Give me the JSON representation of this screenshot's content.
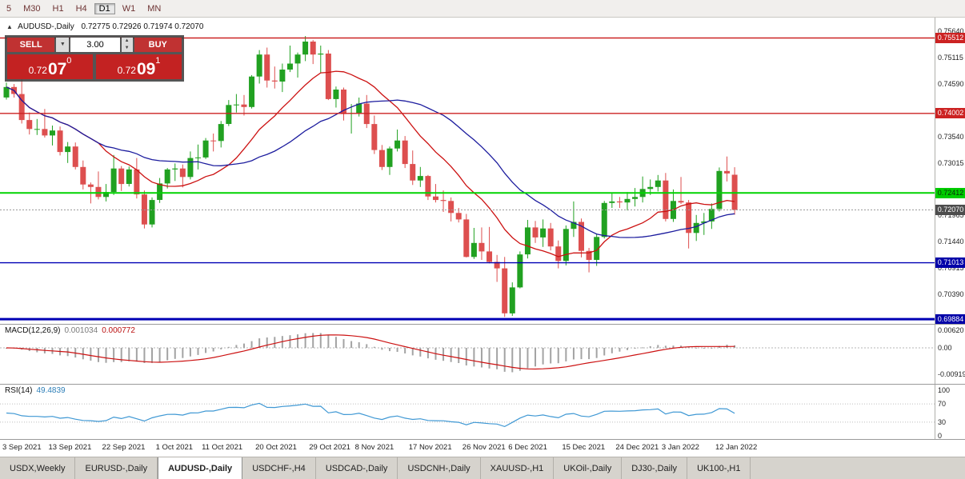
{
  "toolbar": {
    "timeframes": [
      {
        "label": "5",
        "active": false
      },
      {
        "label": "M30",
        "active": false
      },
      {
        "label": "H1",
        "active": false
      },
      {
        "label": "H4",
        "active": false
      },
      {
        "label": "D1",
        "active": true
      },
      {
        "label": "W1",
        "active": false
      },
      {
        "label": "MN",
        "active": false
      }
    ]
  },
  "symbol_header": {
    "arrow": "▲",
    "symbol": "AUDUSD-,Daily",
    "ohlc": "0.72775 0.72926 0.71974 0.72070"
  },
  "trade_panel": {
    "sell_label": "SELL",
    "buy_label": "BUY",
    "volume": "3.00",
    "sell_price": {
      "small": "0.72",
      "big": "07",
      "sup": "0"
    },
    "buy_price": {
      "small": "0.72",
      "big": "09",
      "sup": "1"
    }
  },
  "chart_data": {
    "type": "candlestick",
    "title": "AUDUSD-,Daily",
    "ohlc_header": {
      "open": "0.72775",
      "high": "0.72926",
      "low": "0.71974",
      "close": "0.72070"
    },
    "style": {
      "up": "#21a121",
      "down": "#dd4f4f",
      "bg": "#ffffff"
    },
    "price_axis": {
      "max": 0.7592,
      "min": 0.6979,
      "ticks": [
        0.7564,
        0.75115,
        0.7459,
        0.74065,
        0.7354,
        0.73015,
        0.7249,
        0.71965,
        0.7144,
        0.70915,
        0.7039,
        0.69865
      ]
    },
    "levels": [
      {
        "price": 0.75512,
        "label": "0.75512",
        "color": "#cc2222",
        "width": 1.4,
        "dash": "",
        "badge_bg": "#cc2222",
        "badge_fg": "#ffffff",
        "name": "resistance-line-1"
      },
      {
        "price": 0.74002,
        "label": "0.74002",
        "color": "#cc2222",
        "width": 1.4,
        "dash": "",
        "badge_bg": "#cc2222",
        "badge_fg": "#ffffff",
        "name": "resistance-line-2"
      },
      {
        "price": 0.72412,
        "label": "0.72412",
        "color": "#00d400",
        "width": 2,
        "dash": "",
        "badge_bg": "#00cc00",
        "badge_fg": "#0b2a0b",
        "name": "support-line-green"
      },
      {
        "price": 0.7207,
        "label": "0.72070",
        "color": "#9a9a9a",
        "width": 1,
        "dash": "2,2",
        "badge_bg": "#4d4d4d",
        "badge_fg": "#ffffff",
        "name": "current-price-line"
      },
      {
        "price": 0.71013,
        "label": "0.71013",
        "color": "#0000b4",
        "width": 1.4,
        "dash": "",
        "badge_bg": "#0000a8",
        "badge_fg": "#ffffff",
        "name": "support-line-blue-1"
      },
      {
        "price": 0.69884,
        "label": "0.69884",
        "color": "#0000b4",
        "width": 3,
        "dash": "",
        "badge_bg": "#0000a8",
        "badge_fg": "#ffffff",
        "name": "support-line-blue-2"
      }
    ],
    "moving_averages": [
      {
        "period": 13,
        "color": "#cc1111"
      },
      {
        "period": 26,
        "color": "#1c1c9e"
      }
    ],
    "x_labels": [
      {
        "i": 0,
        "t": "3 Sep 2021"
      },
      {
        "i": 6,
        "t": "13 Sep 2021"
      },
      {
        "i": 13,
        "t": "22 Sep 2021"
      },
      {
        "i": 20,
        "t": "1 Oct 2021"
      },
      {
        "i": 26,
        "t": "11 Oct 2021"
      },
      {
        "i": 33,
        "t": "20 Oct 2021"
      },
      {
        "i": 40,
        "t": "29 Oct 2021"
      },
      {
        "i": 46,
        "t": "8 Nov 2021"
      },
      {
        "i": 53,
        "t": "17 Nov 2021"
      },
      {
        "i": 60,
        "t": "26 Nov 2021"
      },
      {
        "i": 66,
        "t": "6 Dec 2021"
      },
      {
        "i": 73,
        "t": "15 Dec 2021"
      },
      {
        "i": 80,
        "t": "24 Dec 2021"
      },
      {
        "i": 86,
        "t": "3 Jan 2022"
      },
      {
        "i": 93,
        "t": "12 Jan 2022"
      }
    ],
    "candles": [
      [
        0.7432,
        0.7462,
        0.7428,
        0.7453
      ],
      [
        0.7453,
        0.7459,
        0.7432,
        0.7439
      ],
      [
        0.7439,
        0.7468,
        0.738,
        0.7387
      ],
      [
        0.7387,
        0.7402,
        0.7358,
        0.7369
      ],
      [
        0.7369,
        0.7389,
        0.7357,
        0.7369
      ],
      [
        0.7369,
        0.7409,
        0.7352,
        0.7356
      ],
      [
        0.7356,
        0.7376,
        0.7336,
        0.7366
      ],
      [
        0.7366,
        0.7374,
        0.7316,
        0.7323
      ],
      [
        0.7323,
        0.7343,
        0.7301,
        0.7334
      ],
      [
        0.7334,
        0.7342,
        0.7288,
        0.7293
      ],
      [
        0.7293,
        0.7306,
        0.7248,
        0.7258
      ],
      [
        0.7258,
        0.7262,
        0.722,
        0.7253
      ],
      [
        0.7253,
        0.7284,
        0.7228,
        0.7233
      ],
      [
        0.7233,
        0.7259,
        0.7224,
        0.7243
      ],
      [
        0.7243,
        0.7317,
        0.7237,
        0.729
      ],
      [
        0.729,
        0.7295,
        0.7245,
        0.7259
      ],
      [
        0.7259,
        0.7294,
        0.7254,
        0.7288
      ],
      [
        0.7288,
        0.7311,
        0.723,
        0.7238
      ],
      [
        0.7238,
        0.7246,
        0.717,
        0.7178
      ],
      [
        0.7178,
        0.7232,
        0.7172,
        0.7227
      ],
      [
        0.7227,
        0.7271,
        0.7221,
        0.726
      ],
      [
        0.726,
        0.7291,
        0.725,
        0.7288
      ],
      [
        0.7288,
        0.73,
        0.7265,
        0.729
      ],
      [
        0.729,
        0.7298,
        0.7252,
        0.7273
      ],
      [
        0.7273,
        0.7324,
        0.7268,
        0.7311
      ],
      [
        0.7311,
        0.7338,
        0.7288,
        0.7312
      ],
      [
        0.7312,
        0.7351,
        0.7309,
        0.7346
      ],
      [
        0.7346,
        0.736,
        0.7324,
        0.7345
      ],
      [
        0.7345,
        0.7385,
        0.7332,
        0.7379
      ],
      [
        0.7379,
        0.7427,
        0.7375,
        0.7417
      ],
      [
        0.7417,
        0.7439,
        0.7402,
        0.7418
      ],
      [
        0.7418,
        0.7437,
        0.7396,
        0.7413
      ],
      [
        0.7413,
        0.7477,
        0.741,
        0.7474
      ],
      [
        0.7474,
        0.7527,
        0.746,
        0.7518
      ],
      [
        0.7518,
        0.7532,
        0.7452,
        0.7466
      ],
      [
        0.7466,
        0.7494,
        0.745,
        0.7464
      ],
      [
        0.7464,
        0.75,
        0.7443,
        0.7488
      ],
      [
        0.7488,
        0.7536,
        0.7483,
        0.75
      ],
      [
        0.75,
        0.7522,
        0.7472,
        0.7518
      ],
      [
        0.7518,
        0.7555,
        0.7505,
        0.7544
      ],
      [
        0.7544,
        0.7547,
        0.7499,
        0.7518
      ],
      [
        0.7518,
        0.7536,
        0.7482,
        0.752
      ],
      [
        0.752,
        0.7527,
        0.7427,
        0.7429
      ],
      [
        0.7429,
        0.7454,
        0.7412,
        0.7448
      ],
      [
        0.7448,
        0.7452,
        0.7386,
        0.7399
      ],
      [
        0.7399,
        0.7419,
        0.736,
        0.7401
      ],
      [
        0.7401,
        0.7432,
        0.7394,
        0.742
      ],
      [
        0.742,
        0.7437,
        0.7371,
        0.7379
      ],
      [
        0.7379,
        0.7396,
        0.7319,
        0.7327
      ],
      [
        0.7327,
        0.7337,
        0.7287,
        0.7293
      ],
      [
        0.7293,
        0.7334,
        0.7277,
        0.733
      ],
      [
        0.733,
        0.7368,
        0.7324,
        0.7346
      ],
      [
        0.7346,
        0.7355,
        0.7291,
        0.7299
      ],
      [
        0.7299,
        0.7326,
        0.7257,
        0.7266
      ],
      [
        0.7266,
        0.7293,
        0.7253,
        0.7275
      ],
      [
        0.7275,
        0.7277,
        0.7227,
        0.7234
      ],
      [
        0.7234,
        0.7259,
        0.7222,
        0.7227
      ],
      [
        0.7227,
        0.7246,
        0.7203,
        0.7225
      ],
      [
        0.7225,
        0.7232,
        0.7184,
        0.7201
      ],
      [
        0.7201,
        0.7211,
        0.7182,
        0.7188
      ],
      [
        0.7188,
        0.7199,
        0.7112,
        0.7113
      ],
      [
        0.7113,
        0.7171,
        0.7109,
        0.7141
      ],
      [
        0.7141,
        0.7172,
        0.7107,
        0.7124
      ],
      [
        0.7124,
        0.7173,
        0.71,
        0.7103
      ],
      [
        0.7103,
        0.7117,
        0.7063,
        0.709
      ],
      [
        0.709,
        0.7113,
        0.6993,
        0.7
      ],
      [
        0.7,
        0.7062,
        0.6995,
        0.7052
      ],
      [
        0.7052,
        0.7124,
        0.705,
        0.7118
      ],
      [
        0.7118,
        0.7187,
        0.711,
        0.7172
      ],
      [
        0.7172,
        0.7185,
        0.7141,
        0.7152
      ],
      [
        0.7152,
        0.7188,
        0.7133,
        0.717
      ],
      [
        0.717,
        0.7181,
        0.7126,
        0.7134
      ],
      [
        0.7134,
        0.7146,
        0.709,
        0.7105
      ],
      [
        0.7105,
        0.7176,
        0.7096,
        0.7169
      ],
      [
        0.7169,
        0.7224,
        0.7153,
        0.7183
      ],
      [
        0.7183,
        0.719,
        0.7112,
        0.7125
      ],
      [
        0.7125,
        0.7131,
        0.7082,
        0.7107
      ],
      [
        0.7107,
        0.716,
        0.7095,
        0.7153
      ],
      [
        0.7153,
        0.7225,
        0.715,
        0.7221
      ],
      [
        0.7221,
        0.7242,
        0.7211,
        0.7224
      ],
      [
        0.7224,
        0.7233,
        0.7211,
        0.7222
      ],
      [
        0.7222,
        0.7243,
        0.7206,
        0.7229
      ],
      [
        0.7229,
        0.7251,
        0.7214,
        0.7233
      ],
      [
        0.7233,
        0.7274,
        0.7222,
        0.7249
      ],
      [
        0.7249,
        0.7268,
        0.7237,
        0.7253
      ],
      [
        0.7253,
        0.7277,
        0.7244,
        0.7266
      ],
      [
        0.7266,
        0.7281,
        0.7184,
        0.7189
      ],
      [
        0.7189,
        0.7248,
        0.7183,
        0.7225
      ],
      [
        0.7225,
        0.7273,
        0.7219,
        0.7222
      ],
      [
        0.7222,
        0.7227,
        0.713,
        0.7161
      ],
      [
        0.7161,
        0.7197,
        0.7145,
        0.7181
      ],
      [
        0.7181,
        0.7201,
        0.7157,
        0.7184
      ],
      [
        0.7184,
        0.722,
        0.7169,
        0.7209
      ],
      [
        0.7209,
        0.7292,
        0.7204,
        0.7285
      ],
      [
        0.7285,
        0.7314,
        0.7264,
        0.728
      ],
      [
        0.72775,
        0.72926,
        0.71974,
        0.7207
      ]
    ]
  },
  "macd": {
    "label": "MACD(12,26,9)",
    "value_main": "0.001034",
    "value_signal": "0.000772",
    "fast": 12,
    "slow": 26,
    "signal": 9,
    "histogram_color": "#a3a3a3",
    "signal_color": "#cc1111",
    "axis_ticks": [
      {
        "label": "0.00620",
        "v": 0.0062
      },
      {
        "label": "0.00",
        "v": 0
      },
      {
        "label": "-0.00919",
        "v": -0.00919
      }
    ]
  },
  "rsi": {
    "label": "RSI(14)",
    "value": "49.4839",
    "period": 14,
    "line_color": "#3f98d4",
    "levels": [
      70,
      30
    ],
    "axis_ticks": [
      {
        "label": "100",
        "v": 100
      },
      {
        "label": "70",
        "v": 70
      },
      {
        "label": "30",
        "v": 30
      },
      {
        "label": "0",
        "v": 0
      }
    ]
  },
  "bottom_tabs": {
    "items": [
      {
        "label": "USDX,Weekly",
        "active": false
      },
      {
        "label": "EURUSD-,Daily",
        "active": false
      },
      {
        "label": "AUDUSD-,Daily",
        "active": true
      },
      {
        "label": "USDCHF-,H4",
        "active": false
      },
      {
        "label": "USDCAD-,Daily",
        "active": false
      },
      {
        "label": "USDCNH-,Daily",
        "active": false
      },
      {
        "label": "XAUUSD-,H1",
        "active": false
      },
      {
        "label": "UKOil-,Daily",
        "active": false
      },
      {
        "label": "DJ30-,Daily",
        "active": false
      },
      {
        "label": "UK100-,H1",
        "active": false
      }
    ]
  }
}
